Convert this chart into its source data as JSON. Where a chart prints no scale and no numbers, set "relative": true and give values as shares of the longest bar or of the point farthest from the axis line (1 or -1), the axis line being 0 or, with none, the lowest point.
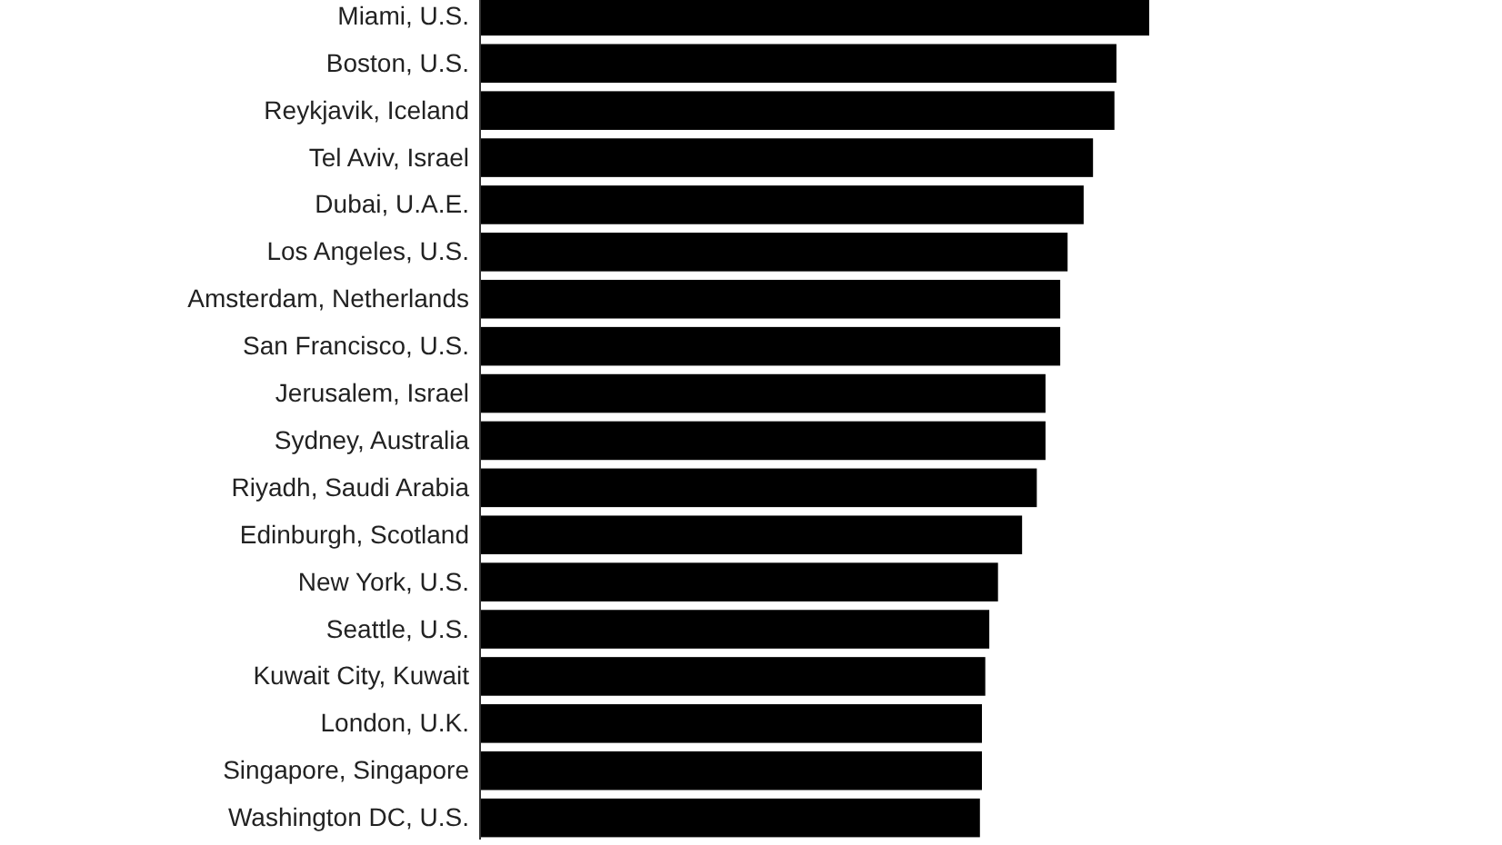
{
  "chart_data": {
    "type": "bar",
    "orientation": "horizontal",
    "relative": true,
    "categories": [
      "Miami, U.S.",
      "Boston, U.S.",
      "Reykjavik, Iceland",
      "Tel Aviv, Israel",
      "Dubai, U.A.E.",
      "Los Angeles, U.S.",
      "Amsterdam, Netherlands",
      "San Francisco, U.S.",
      "Jerusalem, Israel",
      "Sydney, Australia",
      "Riyadh, Saudi Arabia",
      "Edinburgh, Scotland",
      "New York, U.S.",
      "Seattle, U.S.",
      "Kuwait City, Kuwait",
      "London, U.K.",
      "Singapore, Singapore",
      "Washington DC, U.S."
    ],
    "values": [
      1,
      0.951,
      0.948,
      0.916,
      0.902,
      0.878,
      0.867,
      0.867,
      0.845,
      0.845,
      0.832,
      0.81,
      0.774,
      0.761,
      0.755,
      0.75,
      0.75,
      0.747
    ],
    "color": "#000000"
  }
}
